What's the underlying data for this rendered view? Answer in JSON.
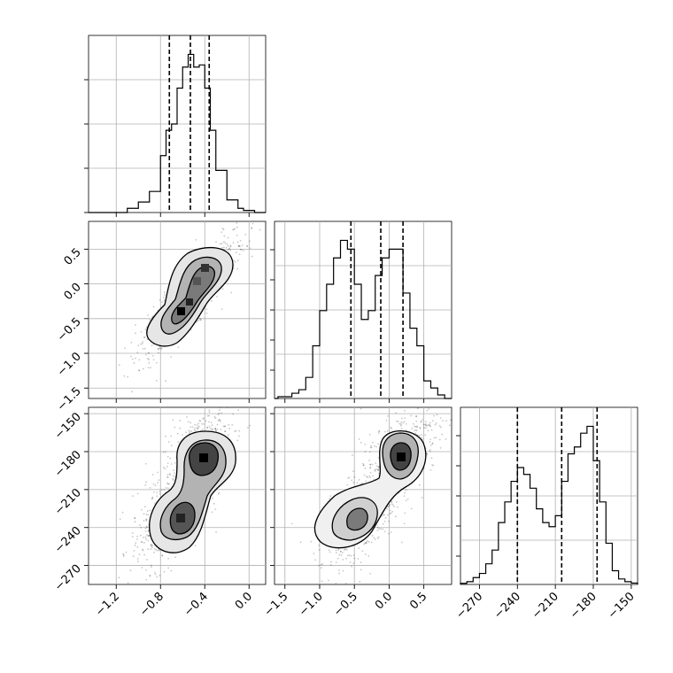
{
  "chart_data": [
    {
      "type": "histogram",
      "panel": "param-1-marginal",
      "x_range": [
        -1.45,
        0.15
      ],
      "bin_edges": [
        -1.1,
        -1.0,
        -0.9,
        -0.8,
        -0.75,
        -0.7,
        -0.65,
        -0.6,
        -0.55,
        -0.5,
        -0.45,
        -0.4,
        -0.35,
        -0.3,
        -0.2,
        -0.1,
        -0.05,
        0.05
      ],
      "counts": [
        2,
        5,
        10,
        27,
        39,
        42,
        59,
        69,
        75,
        69,
        70,
        59,
        39,
        20,
        6,
        2,
        1
      ],
      "quantiles": [
        -0.72,
        -0.53,
        -0.36
      ],
      "grid": true
    },
    {
      "type": "histogram",
      "panel": "param-2-marginal",
      "x_range": [
        -1.65,
        0.9
      ],
      "bin_edges": [
        -1.6,
        -1.4,
        -1.3,
        -1.2,
        -1.1,
        -1.0,
        -0.9,
        -0.8,
        -0.7,
        -0.6,
        -0.5,
        -0.4,
        -0.3,
        -0.2,
        -0.1,
        0.0,
        0.1,
        0.2,
        0.3,
        0.4,
        0.5,
        0.6,
        0.7,
        0.8
      ],
      "counts": [
        1,
        3,
        5,
        12,
        30,
        50,
        65,
        80,
        90,
        85,
        65,
        45,
        50,
        70,
        80,
        85,
        85,
        60,
        40,
        30,
        10,
        6,
        2
      ],
      "quantiles": [
        -0.55,
        -0.12,
        0.2
      ],
      "grid": true
    },
    {
      "type": "histogram",
      "panel": "param-3-marginal",
      "x_range": [
        -285,
        -145
      ],
      "bin_edges": [
        -285,
        -280,
        -275,
        -270,
        -265,
        -260,
        -255,
        -250,
        -245,
        -240,
        -235,
        -230,
        -225,
        -220,
        -215,
        -210,
        -205,
        -200,
        -195,
        -190,
        -185,
        -180,
        -175,
        -170,
        -165,
        -160,
        -155,
        -150,
        -145
      ],
      "counts": [
        0.8,
        2,
        5,
        8,
        15,
        25,
        45,
        60,
        75,
        85,
        80,
        70,
        55,
        45,
        42,
        50,
        75,
        95,
        100,
        110,
        115,
        90,
        60,
        30,
        10,
        4,
        2,
        1
      ],
      "quantiles": [
        -240,
        -205,
        -177
      ],
      "grid": true
    },
    {
      "type": "scatter-density",
      "panel": "param-1-vs-param-2",
      "x_range": [
        -1.45,
        0.15
      ],
      "y_range": [
        -1.65,
        0.9
      ],
      "x_ticks": [
        -1.2,
        -0.8,
        -0.4,
        0.0
      ],
      "y_ticks": [
        0.5,
        0.0,
        -0.5,
        -1.0,
        -1.5
      ],
      "modes": [
        [
          -0.65,
          -0.45
        ],
        [
          -0.4,
          0.1
        ]
      ],
      "grid": true
    },
    {
      "type": "scatter-density",
      "panel": "param-1-vs-param-3",
      "x_range": [
        -1.45,
        0.15
      ],
      "y_range": [
        -285,
        -145
      ],
      "x_ticks": [
        -1.2,
        -0.8,
        -0.4,
        0.0
      ],
      "y_ticks": [
        -150,
        -180,
        -210,
        -240,
        -270
      ],
      "modes": [
        [
          -0.75,
          -235
        ],
        [
          -0.45,
          -182
        ]
      ],
      "grid": true
    },
    {
      "type": "scatter-density",
      "panel": "param-2-vs-param-3",
      "x_range": [
        -1.65,
        0.9
      ],
      "y_range": [
        -285,
        -145
      ],
      "x_ticks": [
        -1.5,
        -1.0,
        -0.5,
        0.0,
        0.5
      ],
      "modes": [
        [
          -0.45,
          -235
        ],
        [
          0.15,
          -182
        ]
      ],
      "grid": true
    }
  ],
  "axes": {
    "col1_x_labels": [
      "-1.2",
      "-0.8",
      "-0.4",
      "0.0"
    ],
    "col2_x_labels": [
      "-1.5",
      "-1.0",
      "-0.5",
      "0.0",
      "0.5"
    ],
    "col3_x_labels": [
      "-270",
      "-240",
      "-210",
      "-180",
      "-150"
    ],
    "row2_y_labels": [
      "0.5",
      "0.0",
      "-0.5",
      "-1.0",
      "-1.5"
    ],
    "row3_y_labels": [
      "-150",
      "-180",
      "-210",
      "-240",
      "-270"
    ]
  }
}
